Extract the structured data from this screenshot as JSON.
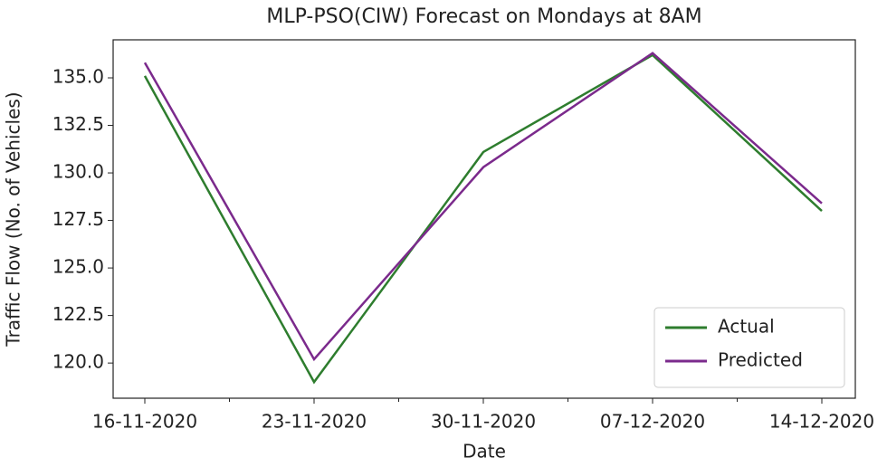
{
  "chart_data": {
    "type": "line",
    "title": "MLP-PSO(CIW) Forecast on Mondays at 8AM",
    "x_label": "Date",
    "y_label": "Traffic Flow (No. of Vehicles)",
    "categories": [
      "16-11-2020",
      "23-11-2020",
      "30-11-2020",
      "07-12-2020",
      "14-12-2020"
    ],
    "series": [
      {
        "name": "Actual",
        "color": "#2e7d2e",
        "values": [
          135.1,
          119.0,
          131.1,
          136.2,
          128.0
        ]
      },
      {
        "name": "Predicted",
        "color": "#7b2a8c",
        "values": [
          135.8,
          120.2,
          130.3,
          136.3,
          128.4
        ]
      }
    ],
    "ylim": [
      118.15,
      137.0
    ],
    "yticks": [
      {
        "value": 120,
        "label": "120.0"
      },
      122.5,
      {
        "value": 125,
        "label": "125.0"
      },
      127.5,
      {
        "value": 130,
        "label": "130.0"
      },
      132.5,
      {
        "value": 135,
        "label": "135.0"
      }
    ],
    "grid": false,
    "legend": "lower right"
  }
}
